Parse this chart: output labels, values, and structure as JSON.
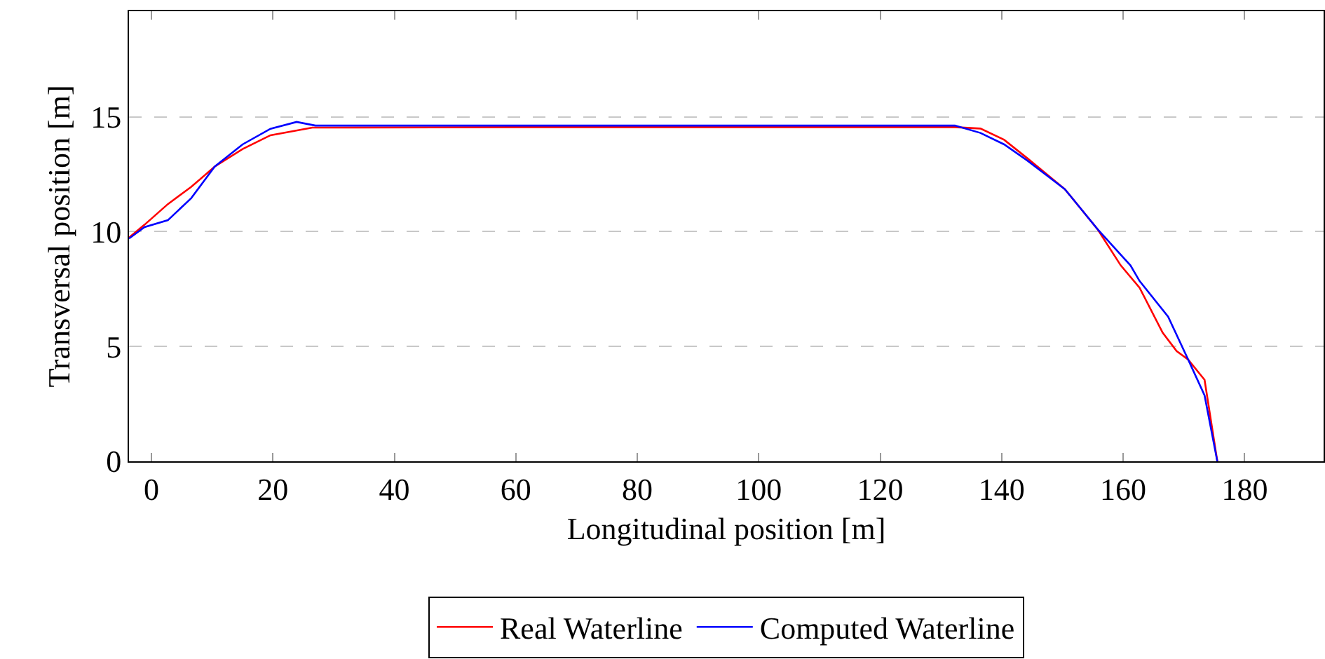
{
  "chart_data": {
    "type": "line",
    "xlabel": "Longitudinal position [m]",
    "ylabel": "Transversal position [m]",
    "xlim": [
      -3.7,
      193
    ],
    "xticks": [
      0,
      20,
      40,
      60,
      80,
      100,
      120,
      140,
      160,
      180
    ],
    "ylim": [
      0,
      19.6
    ],
    "yticks": [
      0,
      5,
      10,
      15
    ],
    "grid": "y",
    "legend": "bottom",
    "line_style": "solid",
    "marker": "none",
    "series": [
      {
        "name": "Real Waterline",
        "color": "#ff0000",
        "x": [
          -3.7,
          -1.15,
          2.7,
          6.55,
          10.4,
          15,
          19.6,
          26.5,
          60,
          100,
          132.3,
          136.5,
          140.4,
          144.2,
          150.4,
          155.8,
          159.6,
          162.7,
          166.5,
          168.8,
          170.7,
          173.4,
          175.5
        ],
        "values": [
          9.74,
          10.3,
          11.2,
          11.95,
          12.83,
          13.6,
          14.2,
          14.53,
          14.55,
          14.55,
          14.55,
          14.49,
          14.0,
          13.2,
          11.85,
          10.1,
          8.53,
          7.56,
          5.6,
          4.8,
          4.43,
          3.55,
          0
        ]
      },
      {
        "name": "Computed Waterline",
        "color": "#0000ff",
        "x": [
          -3.7,
          -1.15,
          2.7,
          6.55,
          10.4,
          15,
          19.6,
          23.9,
          27,
          60,
          100,
          132.3,
          136.5,
          140.4,
          144.2,
          150.4,
          155.8,
          161.2,
          162.7,
          167.4,
          170.7,
          173.4,
          175.5
        ],
        "values": [
          9.7,
          10.2,
          10.5,
          11.46,
          12.83,
          13.8,
          14.48,
          14.78,
          14.62,
          14.62,
          14.62,
          14.62,
          14.3,
          13.8,
          13.1,
          11.85,
          10.1,
          8.53,
          7.85,
          6.3,
          4.43,
          2.87,
          0
        ]
      }
    ]
  }
}
